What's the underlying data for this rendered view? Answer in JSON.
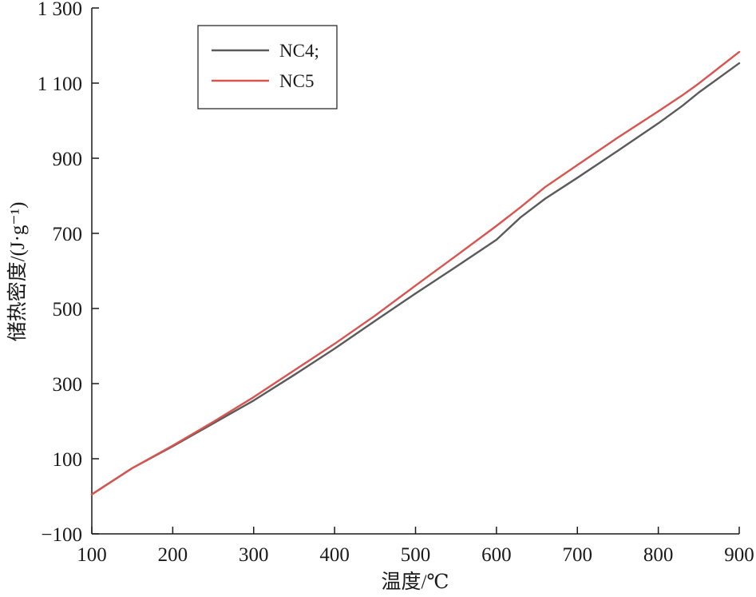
{
  "chart_data": {
    "type": "line",
    "xlabel": "温度/℃",
    "ylabel": "储热密度/(J·g⁻¹)",
    "xlim": [
      100,
      900
    ],
    "ylim": [
      -100,
      1300
    ],
    "xticks": [
      100,
      200,
      300,
      400,
      500,
      600,
      700,
      800,
      900
    ],
    "xtick_labels": [
      "100",
      "200",
      "300",
      "400",
      "500",
      "600",
      "700",
      "800",
      "900"
    ],
    "yticks": [
      -100,
      100,
      300,
      500,
      700,
      900,
      1100,
      1300
    ],
    "ytick_labels": [
      "−100",
      "100",
      "300",
      "500",
      "700",
      "900",
      "1 100",
      "1 300"
    ],
    "grid": false,
    "legend_position": "top-left",
    "x": [
      100,
      150,
      200,
      250,
      300,
      350,
      400,
      450,
      500,
      550,
      600,
      630,
      660,
      700,
      750,
      800,
      830,
      850,
      900
    ],
    "series": [
      {
        "name": "NC4;",
        "color": "#5a5a5a",
        "values": [
          5,
          75,
          133,
          194,
          255,
          323,
          393,
          467,
          540,
          611,
          683,
          743,
          792,
          848,
          920,
          993,
          1040,
          1075,
          1153
        ]
      },
      {
        "name": "NC5",
        "color": "#d9534f",
        "values": [
          5,
          75,
          135,
          198,
          264,
          335,
          406,
          481,
          561,
          640,
          720,
          770,
          823,
          882,
          955,
          1025,
          1068,
          1099,
          1183
        ]
      }
    ]
  }
}
